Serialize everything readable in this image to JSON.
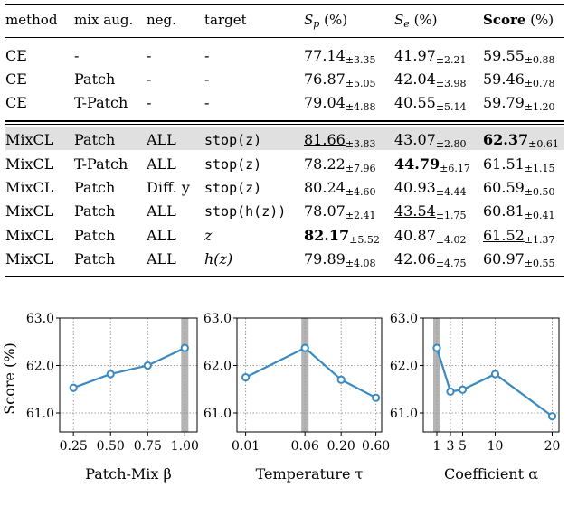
{
  "table": {
    "headers": {
      "method": "method",
      "mix_aug": "mix aug.",
      "neg": "neg.",
      "target": "target",
      "sp": "S_p (%)",
      "se": "S_e (%)",
      "score_bold": "Score",
      "score_unit": " (%)"
    },
    "rows": [
      {
        "method": "CE",
        "mix": "-",
        "neg": "-",
        "target": "-",
        "sp": "77.14",
        "sp_pm": "±3.35",
        "se": "41.97",
        "se_pm": "±2.21",
        "score": "59.55",
        "score_pm": "±0.88"
      },
      {
        "method": "CE",
        "mix": "Patch",
        "neg": "-",
        "target": "-",
        "sp": "76.87",
        "sp_pm": "±5.05",
        "se": "42.04",
        "se_pm": "±3.98",
        "score": "59.46",
        "score_pm": "±0.78"
      },
      {
        "method": "CE",
        "mix": "T-Patch",
        "neg": "-",
        "target": "-",
        "sp": "79.04",
        "sp_pm": "±4.88",
        "se": "40.55",
        "se_pm": "±5.14",
        "score": "59.79",
        "score_pm": "±1.20"
      },
      {
        "method": "MixCL",
        "mix": "Patch",
        "neg": "ALL",
        "target": "stop(z)",
        "sp": "81.66",
        "sp_pm": "±3.83",
        "se": "43.07",
        "se_pm": "±2.80",
        "score": "62.37",
        "score_pm": "±0.61"
      },
      {
        "method": "MixCL",
        "mix": "T-Patch",
        "neg": "ALL",
        "target": "stop(z)",
        "sp": "78.22",
        "sp_pm": "±7.96",
        "se": "44.79",
        "se_pm": "±6.17",
        "score": "61.51",
        "score_pm": "±1.15"
      },
      {
        "method": "MixCL",
        "mix": "Patch",
        "neg": "Diff. y",
        "target": "stop(z)",
        "sp": "80.24",
        "sp_pm": "±4.60",
        "se": "40.93",
        "se_pm": "±4.44",
        "score": "60.59",
        "score_pm": "±0.50"
      },
      {
        "method": "MixCL",
        "mix": "Patch",
        "neg": "ALL",
        "target": "stop(h(z))",
        "sp": "78.07",
        "sp_pm": "±2.41",
        "se": "43.54",
        "se_pm": "±1.75",
        "score": "60.81",
        "score_pm": "±0.41"
      },
      {
        "method": "MixCL",
        "mix": "Patch",
        "neg": "ALL",
        "target": "z",
        "sp": "82.17",
        "sp_pm": "±5.52",
        "se": "40.87",
        "se_pm": "±4.02",
        "score": "61.52",
        "score_pm": "±1.37"
      },
      {
        "method": "MixCL",
        "mix": "Patch",
        "neg": "ALL",
        "target": "h(z)",
        "sp": "79.89",
        "sp_pm": "±4.08",
        "se": "42.06",
        "se_pm": "±4.75",
        "score": "60.97",
        "score_pm": "±0.55"
      }
    ]
  },
  "chart_data": [
    {
      "type": "line",
      "xlabel": "Patch-Mix β",
      "ylabel": "Score (%)",
      "x_tick_labels": [
        "0.25",
        "0.50",
        "0.75",
        "1.00"
      ],
      "x": [
        0.25,
        0.5,
        0.75,
        1.0
      ],
      "values": [
        61.53,
        61.82,
        62.0,
        62.37
      ],
      "ylim": [
        60.6,
        63.0
      ],
      "y_ticks": [
        "63.0",
        "62.0",
        "61.0"
      ],
      "highlight_x": 1.0,
      "grid": true,
      "color": "#3a8ac0"
    },
    {
      "type": "line",
      "xlabel": "Temperature τ",
      "x_tick_labels": [
        "0.01",
        "0.06",
        "0.20",
        "0.60"
      ],
      "x": [
        "0.01",
        "0.06",
        "0.20",
        "0.60"
      ],
      "values": [
        61.75,
        62.37,
        61.7,
        61.32
      ],
      "ylim": [
        60.6,
        63.0
      ],
      "y_ticks": [
        "63.0",
        "62.0",
        "61.0"
      ],
      "highlight_x": "0.06",
      "grid": true,
      "color": "#3a8ac0"
    },
    {
      "type": "line",
      "xlabel": "Coefficient α",
      "x_tick_labels": [
        "1",
        "3",
        "5",
        "10",
        "20"
      ],
      "x": [
        1,
        3,
        5,
        10,
        20
      ],
      "values": [
        62.37,
        61.45,
        61.49,
        61.82,
        60.93
      ],
      "ylim": [
        60.6,
        63.0
      ],
      "y_ticks": [
        "63.0",
        "62.0",
        "61.0"
      ],
      "highlight_x": 1,
      "grid": true,
      "color": "#3a8ac0"
    }
  ]
}
